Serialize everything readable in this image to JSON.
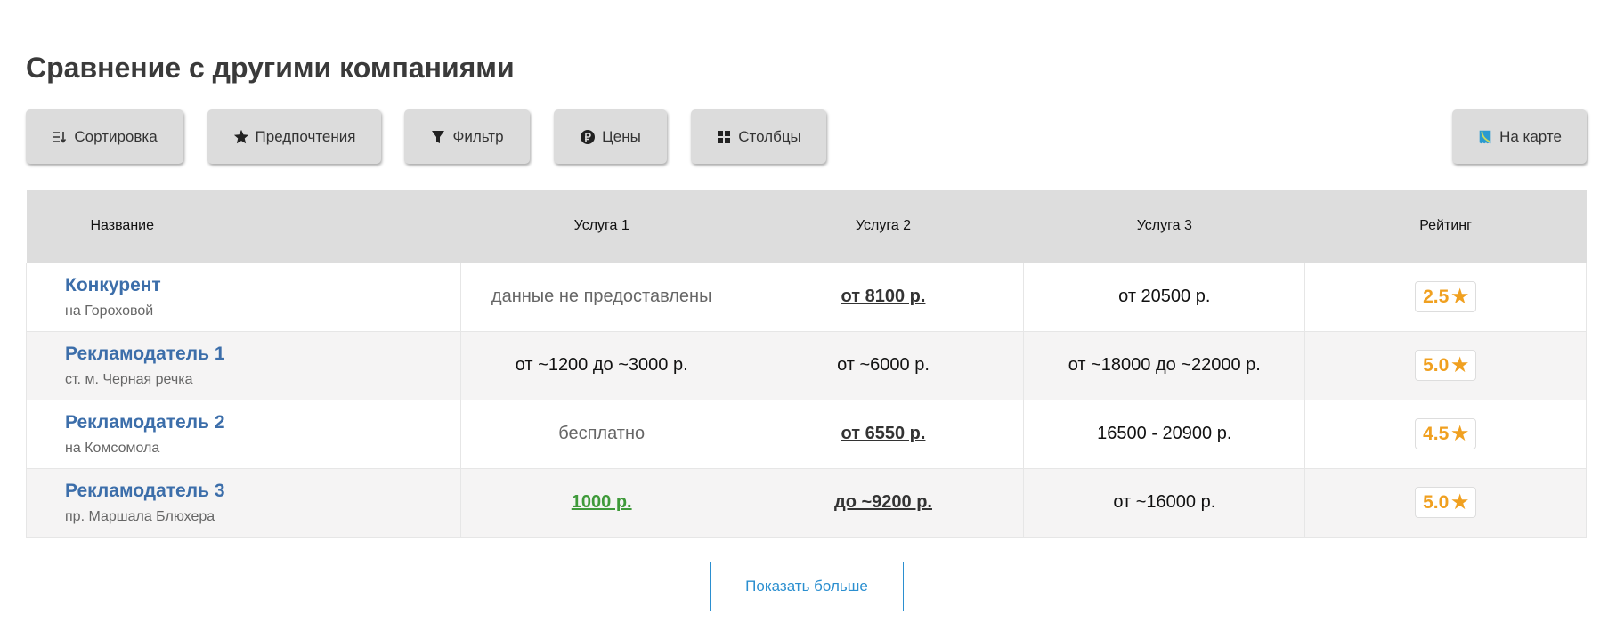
{
  "title": "Сравнение с другими компаниями",
  "toolbar": {
    "sort": "Сортировка",
    "prefs": "Предпочтения",
    "filter": "Фильтр",
    "prices": "Цены",
    "columns": "Столбцы",
    "map": "На карте"
  },
  "table": {
    "headers": [
      "Название",
      "Услуга 1",
      "Услуга 2",
      "Услуга 3",
      "Рейтинг"
    ],
    "rows": [
      {
        "name": "Конкурент",
        "address": "на Гороховой",
        "s1": "данные не предоставлены",
        "s2": "от 8100 р.",
        "s3": "от 20500 р.",
        "rating": "2.5"
      },
      {
        "name": "Рекламодатель 1",
        "address": "ст. м. Черная речка",
        "s1": "от ~1200 до ~3000 р.",
        "s2": "от ~6000 р.",
        "s3": "от ~18000 до ~22000 р.",
        "rating": "5.0"
      },
      {
        "name": "Рекламодатель 2",
        "address": "на Комсомола",
        "s1": "бесплатно",
        "s2": "от 6550 р.",
        "s3": "16500 - 20900 р.",
        "rating": "4.5"
      },
      {
        "name": "Рекламодатель 3",
        "address": "пр. Маршала Блюхера",
        "s1": "1000 р.",
        "s2": "до ~9200 р.",
        "s3": "от ~16000 р.",
        "rating": "5.0"
      }
    ]
  },
  "show_more": "Показать больше",
  "colors": {
    "link": "#3c6eaa",
    "rating": "#f0a020",
    "green": "#3f9a3a",
    "accent": "#2b8fd0"
  }
}
